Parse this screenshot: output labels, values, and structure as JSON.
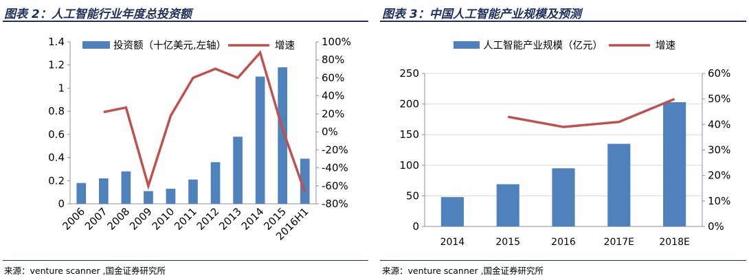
{
  "left_panel": {
    "title": "图表 2：人工智能行业年度总投资额",
    "source": "来源：venture  scanner ,国金证券研究所"
  },
  "right_panel": {
    "title": "图表 3：中国人工智能产业规模及预测",
    "source": "来源：venture scanner ,国金证券研究所"
  },
  "colors": {
    "bar": "#4f81bd",
    "line": "#c0504d",
    "title": "#1f2f5c",
    "grid": "#d9d9d9"
  },
  "chart_data": [
    {
      "type": "bar",
      "title": "人工智能行业年度总投资额",
      "categories": [
        "2006",
        "2007",
        "2008",
        "2009",
        "2010",
        "2011",
        "2012",
        "2013",
        "2014",
        "2015",
        "2016H1"
      ],
      "series": [
        {
          "name": "投资额（十亿美元,左轴）",
          "type": "bar",
          "axis": "left",
          "values": [
            0.18,
            0.22,
            0.28,
            0.11,
            0.13,
            0.21,
            0.36,
            0.58,
            1.1,
            1.18,
            0.39
          ]
        },
        {
          "name": "增速",
          "type": "line",
          "axis": "right",
          "unit": "%",
          "values": [
            null,
            22,
            27,
            -60,
            18,
            60,
            70,
            60,
            88,
            3,
            -67
          ]
        }
      ],
      "y_left": {
        "min": 0,
        "max": 1.4,
        "ticks": [
          "0",
          "0.2",
          "0.4",
          "0.6",
          "0.8",
          "1",
          "1.2",
          "1.4"
        ]
      },
      "y_right": {
        "min": -80,
        "max": 100,
        "ticks": [
          "-80%",
          "-60%",
          "-40%",
          "-20%",
          "0%",
          "20%",
          "40%",
          "60%",
          "80%",
          "100%"
        ]
      },
      "grid": false,
      "legend": "top"
    },
    {
      "type": "bar",
      "title": "中国人工智能产业规模及预测",
      "categories": [
        "2014",
        "2015",
        "2016",
        "2017E",
        "2018E"
      ],
      "series": [
        {
          "name": "人工智能产业规模（亿元）",
          "type": "bar",
          "axis": "left",
          "values": [
            48,
            69,
            95,
            135,
            203
          ]
        },
        {
          "name": "增速",
          "type": "line",
          "axis": "right",
          "unit": "%",
          "values": [
            null,
            43,
            39,
            41,
            50
          ]
        }
      ],
      "y_left": {
        "min": 0,
        "max": 250,
        "ticks": [
          "0",
          "50",
          "100",
          "150",
          "200",
          "250"
        ]
      },
      "y_right": {
        "min": 0,
        "max": 60,
        "ticks": [
          "0%",
          "10%",
          "20%",
          "30%",
          "40%",
          "50%",
          "60%"
        ]
      },
      "grid": true,
      "legend": "top"
    }
  ]
}
